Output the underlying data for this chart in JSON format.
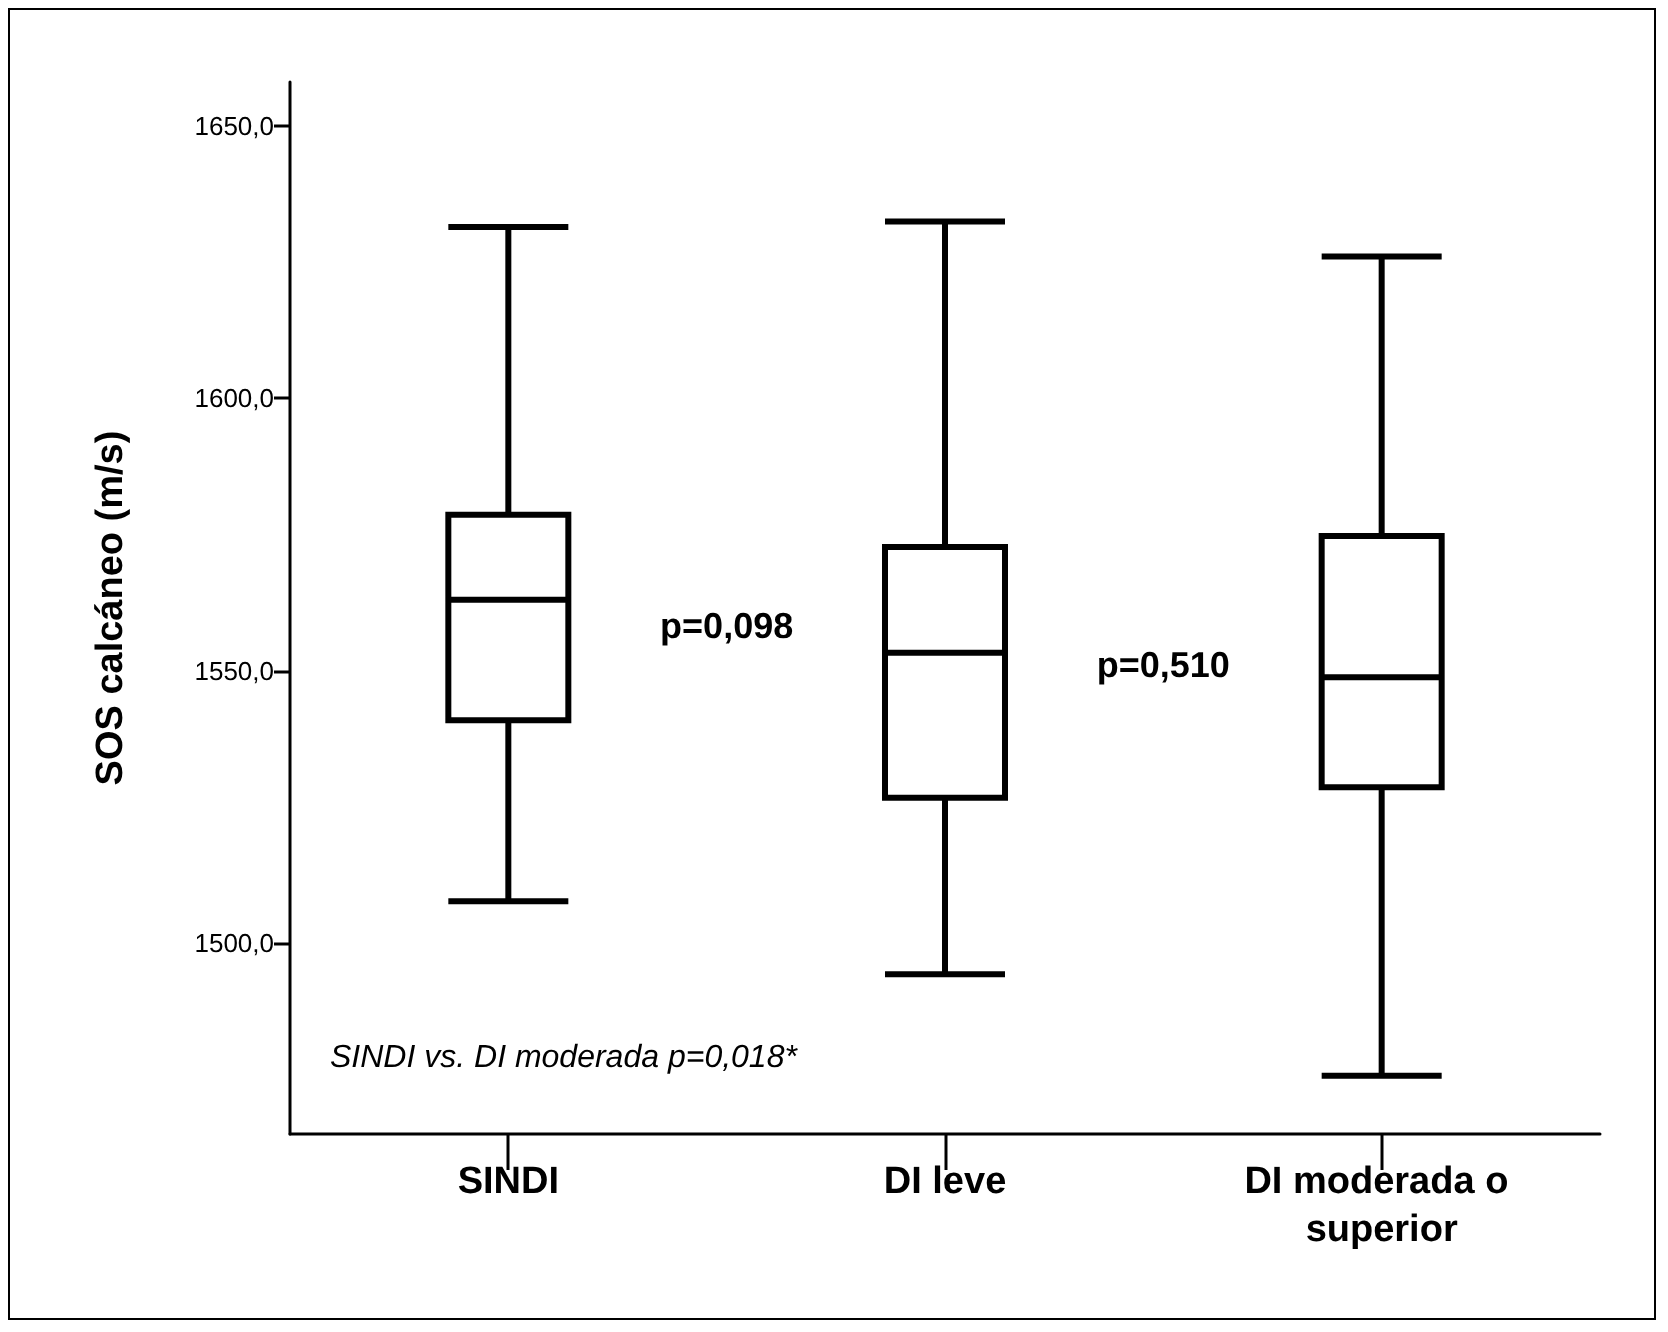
{
  "chart_data": {
    "type": "box",
    "ylabel": "SOS calcáneo (m/s)",
    "categories": [
      "SINDI",
      "DI leve",
      "DI moderada o superior"
    ],
    "boxes": [
      {
        "low": 1507.7,
        "q1": 1540.9,
        "median": 1563,
        "q3": 1578.6,
        "high": 1631.4
      },
      {
        "low": 1494.3,
        "q1": 1526.7,
        "median": 1553.3,
        "q3": 1572.7,
        "high": 1632.4
      },
      {
        "low": 1475.7,
        "q1": 1528.6,
        "median": 1548.8,
        "q3": 1574.7,
        "high": 1626
      }
    ],
    "color": "#000000",
    "ylim": [
      1465,
      1658
    ],
    "yticks": [
      {
        "value": 1500,
        "label": "1500,0"
      },
      {
        "value": 1550,
        "label": "1550,0"
      },
      {
        "value": 1600,
        "label": "1600,0"
      },
      {
        "value": 1650,
        "label": "1650,0"
      }
    ],
    "grid": false,
    "annotations": [
      "p=0,098",
      "p=0,510",
      "SINDI vs. DI moderada p=0,018*"
    ]
  }
}
